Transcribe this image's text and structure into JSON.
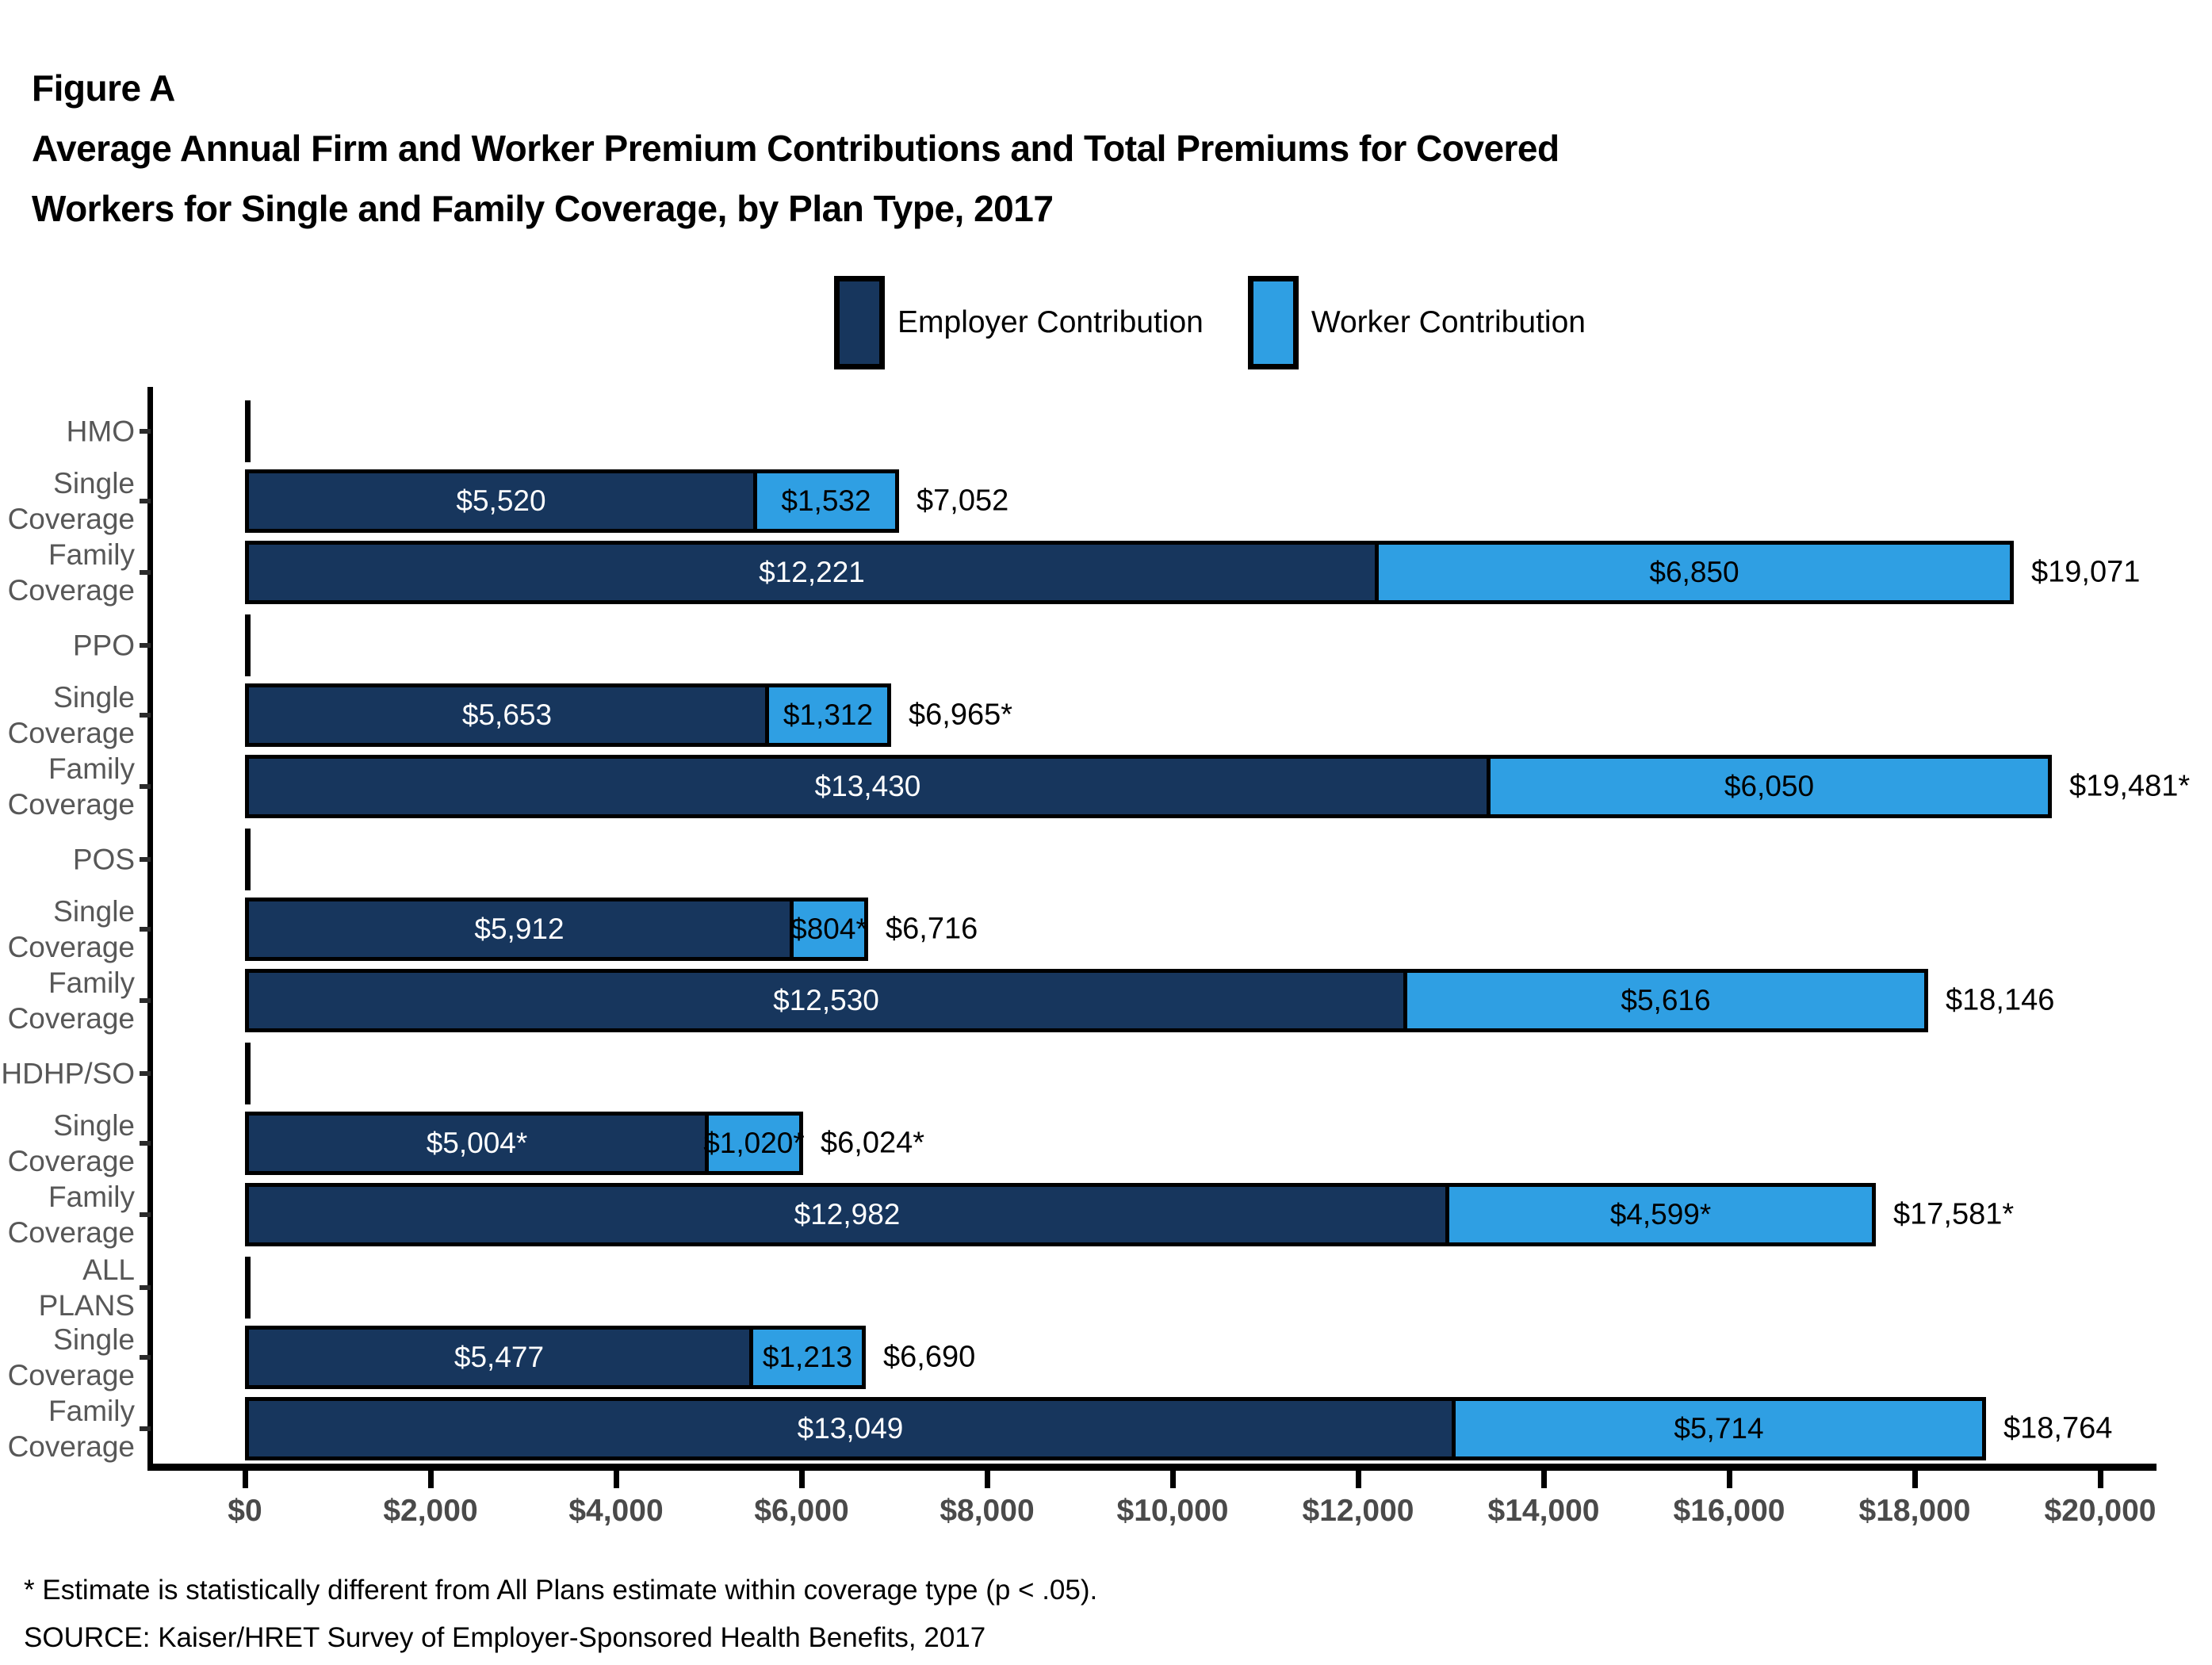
{
  "figure_label": "Figure A",
  "title_lines": [
    "Average Annual Firm and Worker Premium Contributions and Total Premiums for Covered",
    "Workers for Single and Family Coverage, by Plan Type, 2017"
  ],
  "legend": {
    "items": [
      {
        "label": "Employer Contribution",
        "color": "#17365D"
      },
      {
        "label": "Worker Contribution",
        "color": "#2F9FE3"
      }
    ]
  },
  "chart_data": {
    "type": "bar",
    "orientation": "horizontal",
    "stacked": true,
    "title": "Average Annual Firm and Worker Premium Contributions and Total Premiums for Covered Workers for Single and Family Coverage, by Plan Type, 2017",
    "xlim": [
      0,
      20000
    ],
    "x_tick_interval": 2000,
    "x_tick_labels": [
      "$0",
      "$2,000",
      "$4,000",
      "$6,000",
      "$8,000",
      "$10,000",
      "$12,000",
      "$14,000",
      "$16,000",
      "$18,000",
      "$20,000"
    ],
    "series_names": [
      "Employer Contribution",
      "Worker Contribution"
    ],
    "colors": {
      "employer": "#17365D",
      "worker": "#2F9FE3",
      "bar_border": "#000000"
    },
    "legend_position": "top",
    "grid": false,
    "groups": [
      {
        "plan_type_lines": [
          "HMO"
        ],
        "rows": [
          {
            "category_lines": [
              "Single",
              "Coverage"
            ],
            "employer": 5520,
            "worker": 1532,
            "total": 7052,
            "employer_label": "$5,520",
            "worker_label": "$1,532",
            "total_label": "$7,052"
          },
          {
            "category_lines": [
              "Family",
              "Coverage"
            ],
            "employer": 12221,
            "worker": 6850,
            "total": 19071,
            "employer_label": "$12,221",
            "worker_label": "$6,850",
            "total_label": "$19,071"
          }
        ]
      },
      {
        "plan_type_lines": [
          "PPO"
        ],
        "rows": [
          {
            "category_lines": [
              "Single",
              "Coverage"
            ],
            "employer": 5653,
            "worker": 1312,
            "total": 6965,
            "employer_label": "$5,653",
            "worker_label": "$1,312",
            "total_label": "$6,965*"
          },
          {
            "category_lines": [
              "Family",
              "Coverage"
            ],
            "employer": 13430,
            "worker": 6050,
            "total": 19481,
            "employer_label": "$13,430",
            "worker_label": "$6,050",
            "total_label": "$19,481*"
          }
        ]
      },
      {
        "plan_type_lines": [
          "POS"
        ],
        "rows": [
          {
            "category_lines": [
              "Single",
              "Coverage"
            ],
            "employer": 5912,
            "worker": 804,
            "total": 6716,
            "employer_label": "$5,912",
            "worker_label": "$804*",
            "total_label": "$6,716"
          },
          {
            "category_lines": [
              "Family",
              "Coverage"
            ],
            "employer": 12530,
            "worker": 5616,
            "total": 18146,
            "employer_label": "$12,530",
            "worker_label": "$5,616",
            "total_label": "$18,146"
          }
        ]
      },
      {
        "plan_type_lines": [
          "HDHP/SO"
        ],
        "rows": [
          {
            "category_lines": [
              "Single",
              "Coverage"
            ],
            "employer": 5004,
            "worker": 1020,
            "total": 6024,
            "employer_label": "$5,004*",
            "worker_label": "$1,020*",
            "total_label": "$6,024*"
          },
          {
            "category_lines": [
              "Family",
              "Coverage"
            ],
            "employer": 12982,
            "worker": 4599,
            "total": 17581,
            "employer_label": "$12,982",
            "worker_label": "$4,599*",
            "total_label": "$17,581*"
          }
        ]
      },
      {
        "plan_type_lines": [
          "ALL",
          "PLANS"
        ],
        "rows": [
          {
            "category_lines": [
              "Single",
              "Coverage"
            ],
            "employer": 5477,
            "worker": 1213,
            "total": 6690,
            "employer_label": "$5,477",
            "worker_label": "$1,213",
            "total_label": "$6,690"
          },
          {
            "category_lines": [
              "Family",
              "Coverage"
            ],
            "employer": 13049,
            "worker": 5714,
            "total": 18764,
            "employer_label": "$13,049",
            "worker_label": "$5,714",
            "total_label": "$18,764"
          }
        ]
      }
    ]
  },
  "footnotes": [
    "* Estimate is statistically different from All Plans estimate within coverage type (p < .05).",
    "SOURCE: Kaiser/HRET Survey of Employer-Sponsored Health Benefits, 2017"
  ]
}
